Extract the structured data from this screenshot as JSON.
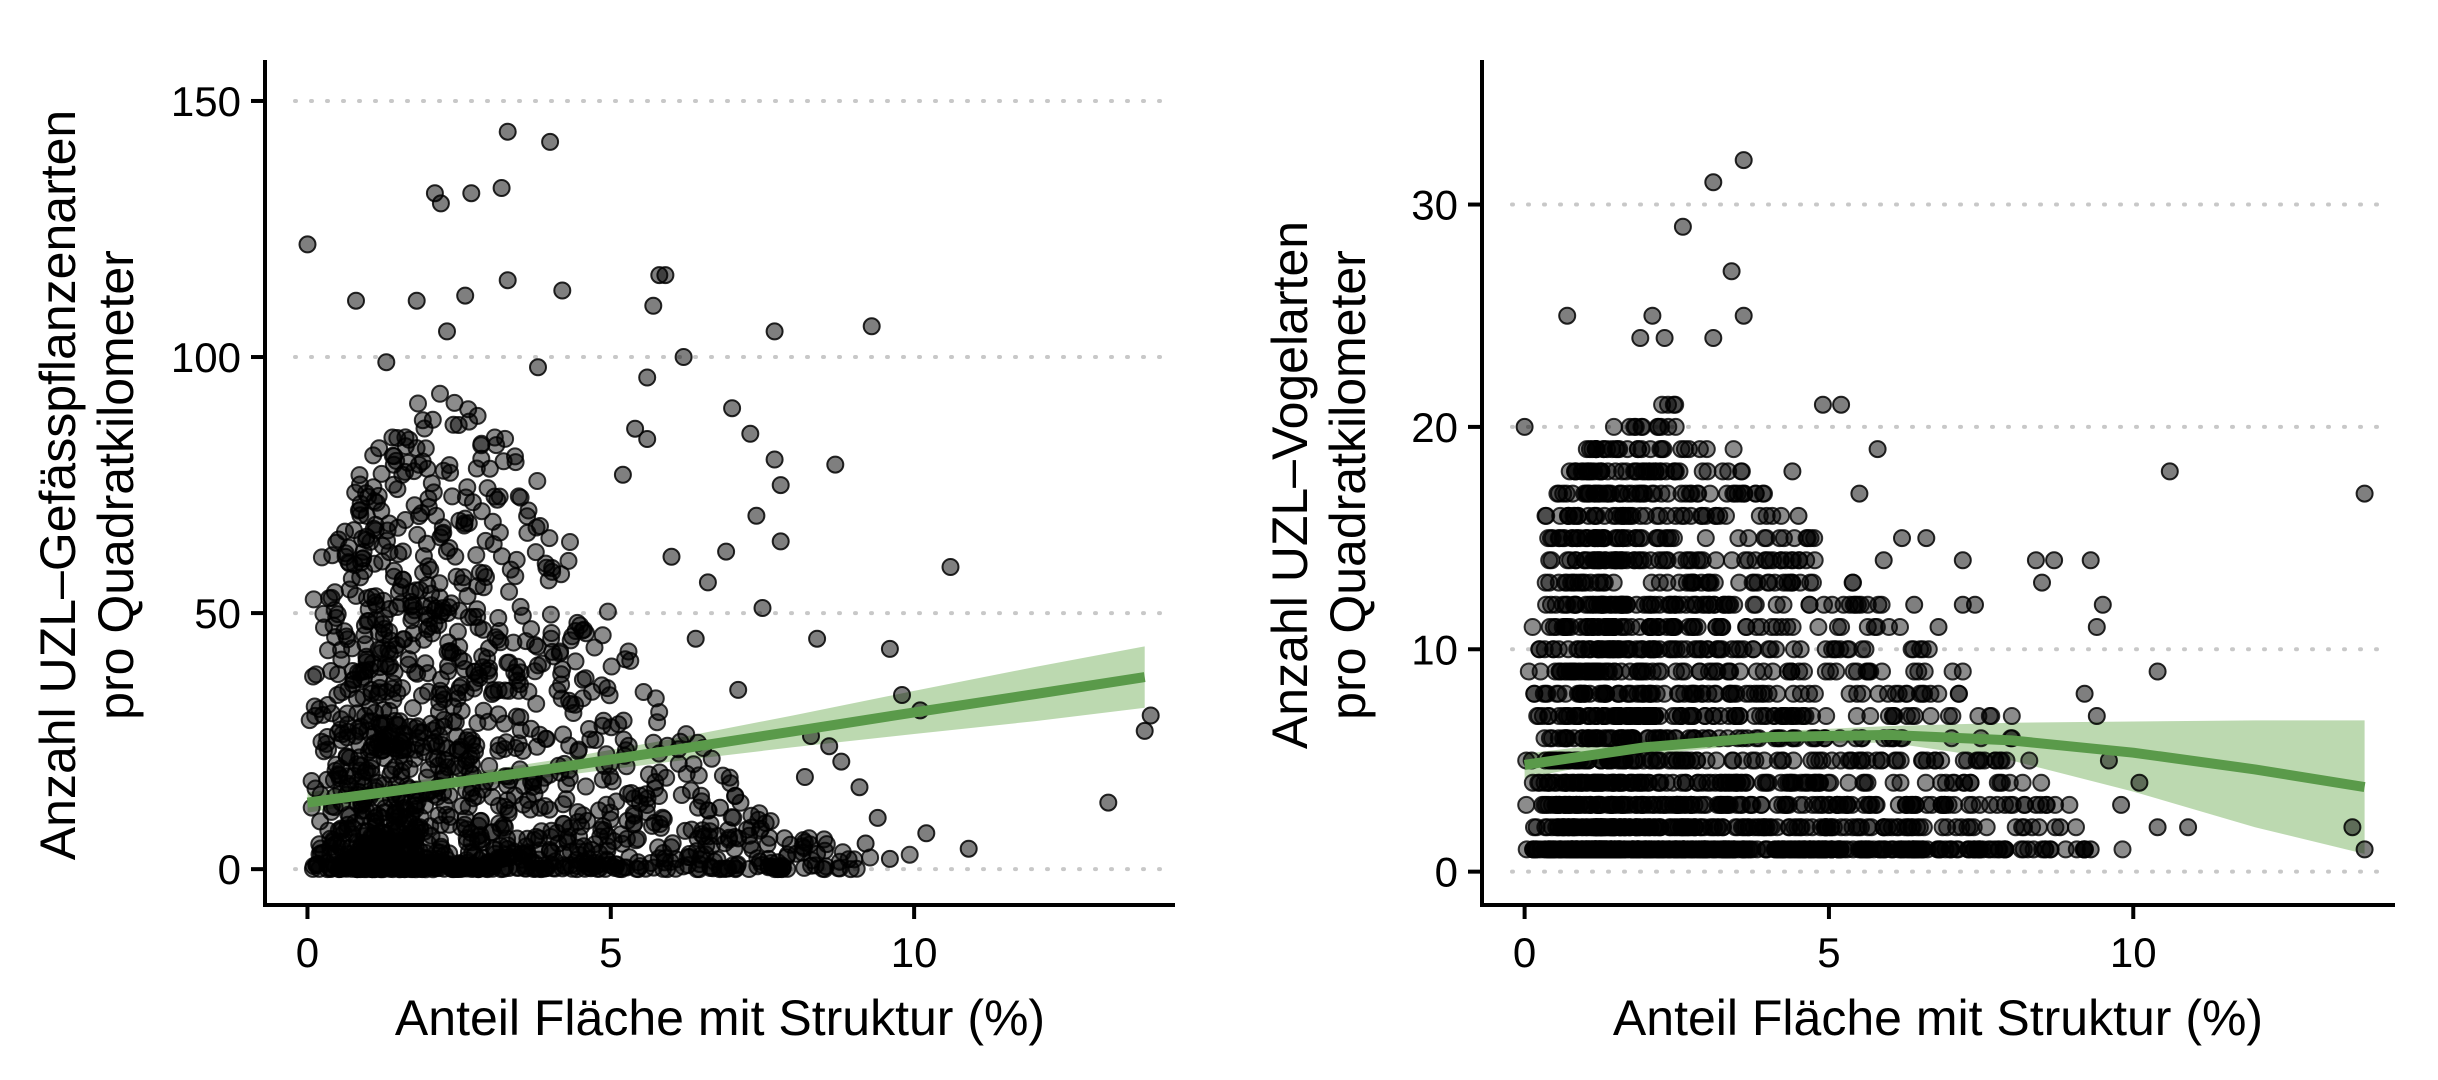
{
  "chart_data": [
    {
      "type": "scatter",
      "xlabel": "Anteil Fläche mit Struktur (%)",
      "ylabel_lines": [
        "Anzahl UZL–Gefässpflanzenarten",
        "pro Quadratkilometer"
      ],
      "xlim": [
        -0.7,
        14.3
      ],
      "ylim": [
        -7,
        158
      ],
      "xticks": [
        0,
        5,
        10
      ],
      "yticks": [
        0,
        50,
        100,
        150
      ],
      "grid": "horizontal dotted",
      "colors": {
        "points": "#000000",
        "trend": "#5a9a4a",
        "band": "#a6cc96",
        "grid": "#c8c8c8"
      },
      "highlight_points": [
        [
          0,
          122
        ],
        [
          3.3,
          144
        ],
        [
          4,
          142
        ],
        [
          2.1,
          132
        ],
        [
          2.7,
          132
        ],
        [
          3.2,
          133
        ],
        [
          2.2,
          130
        ],
        [
          1.8,
          111
        ],
        [
          2.6,
          112
        ],
        [
          3.3,
          115
        ],
        [
          4.2,
          113
        ],
        [
          0.8,
          111
        ],
        [
          5.8,
          116
        ],
        [
          5.9,
          116
        ],
        [
          5.7,
          110
        ],
        [
          7.7,
          105
        ],
        [
          9.3,
          106
        ],
        [
          2.3,
          105
        ],
        [
          6.2,
          100
        ],
        [
          5.6,
          96
        ],
        [
          1.3,
          99
        ],
        [
          3.8,
          98
        ],
        [
          7,
          90
        ],
        [
          7.3,
          85
        ],
        [
          5.4,
          86
        ],
        [
          5.6,
          84
        ],
        [
          7.7,
          80
        ],
        [
          8.7,
          79
        ],
        [
          7.8,
          75
        ],
        [
          5.2,
          77
        ],
        [
          6.9,
          62
        ],
        [
          7.8,
          64
        ],
        [
          10.6,
          59
        ],
        [
          7.4,
          69
        ],
        [
          6.6,
          56
        ],
        [
          6,
          61
        ],
        [
          9.6,
          43
        ],
        [
          8.4,
          45
        ],
        [
          6.4,
          45
        ],
        [
          7.5,
          51
        ],
        [
          7.1,
          35
        ],
        [
          9.8,
          34
        ],
        [
          10.1,
          31
        ],
        [
          8.3,
          26
        ],
        [
          8.6,
          24
        ],
        [
          9.1,
          16
        ],
        [
          9.4,
          10
        ],
        [
          10.2,
          7
        ],
        [
          10.9,
          4
        ],
        [
          13.2,
          13
        ],
        [
          13.8,
          27
        ],
        [
          13.9,
          30
        ],
        [
          9.2,
          5
        ],
        [
          9.6,
          2
        ],
        [
          8.4,
          3
        ],
        [
          8.2,
          18
        ],
        [
          8.8,
          21
        ],
        [
          7.6,
          2
        ],
        [
          7.1,
          6
        ],
        [
          6.8,
          12
        ]
      ],
      "cloud_profile": [
        [
          0,
          55
        ],
        [
          0.5,
          70
        ],
        [
          1,
          80
        ],
        [
          1.5,
          88
        ],
        [
          2,
          95
        ],
        [
          2.5,
          92
        ],
        [
          3,
          88
        ],
        [
          3.5,
          82
        ],
        [
          4,
          72
        ],
        [
          4.5,
          60
        ],
        [
          5,
          50
        ],
        [
          5.5,
          38
        ],
        [
          6,
          30
        ],
        [
          6.5,
          24
        ],
        [
          7,
          18
        ],
        [
          7.5,
          12
        ],
        [
          8,
          9
        ],
        [
          8.5,
          6
        ],
        [
          9,
          4
        ],
        [
          10,
          3
        ],
        [
          11,
          2
        ],
        [
          12,
          1
        ],
        [
          14,
          1
        ]
      ],
      "cloud_point_count": 1450,
      "trend_line": {
        "x": [
          0,
          2,
          4,
          6,
          8,
          10,
          12,
          13.8
        ],
        "y": [
          13,
          16.2,
          19.6,
          23.2,
          26.9,
          30.6,
          34.2,
          37.5
        ],
        "lower": [
          11,
          14.8,
          18,
          21,
          23.8,
          26.4,
          28.9,
          31.5
        ],
        "upper": [
          15,
          17.6,
          21.2,
          25.4,
          30,
          34.8,
          39.5,
          43.5
        ]
      }
    },
    {
      "type": "scatter",
      "xlabel": "Anteil Fläche mit Struktur (%)",
      "ylabel_lines": [
        "Anzahl UZL–Vogelarten",
        "pro Quadratkilometer"
      ],
      "xlim": [
        -0.7,
        14.3
      ],
      "ylim": [
        -1.5,
        36.5
      ],
      "xticks": [
        0,
        5,
        10
      ],
      "yticks": [
        0,
        10,
        20,
        30
      ],
      "grid": "horizontal dotted",
      "colors": {
        "points": "#000000",
        "trend": "#5a9a4a",
        "band": "#a6cc96",
        "grid": "#c8c8c8"
      },
      "highlight_points": [
        [
          3.6,
          32
        ],
        [
          3.1,
          31
        ],
        [
          2.6,
          29
        ],
        [
          3.4,
          27
        ],
        [
          0.7,
          25
        ],
        [
          2.1,
          25
        ],
        [
          3.6,
          25
        ],
        [
          4.9,
          21
        ],
        [
          5.2,
          21
        ],
        [
          0,
          20
        ],
        [
          5.5,
          17
        ],
        [
          5.8,
          19
        ],
        [
          6.2,
          15
        ],
        [
          6.6,
          15
        ],
        [
          7.2,
          14
        ],
        [
          8.4,
          14
        ],
        [
          8.7,
          14
        ],
        [
          8.5,
          13
        ],
        [
          9.3,
          14
        ],
        [
          10.6,
          18
        ],
        [
          13.8,
          17
        ],
        [
          9.5,
          12
        ],
        [
          7.4,
          12
        ],
        [
          9.4,
          11
        ],
        [
          9.2,
          8
        ],
        [
          9.4,
          7
        ],
        [
          10.4,
          9
        ],
        [
          9.6,
          5
        ],
        [
          9.8,
          3
        ],
        [
          10.1,
          4
        ],
        [
          10.4,
          2
        ],
        [
          10.9,
          2
        ],
        [
          13.6,
          2
        ],
        [
          13.8,
          1
        ],
        [
          9.2,
          1
        ],
        [
          9.3,
          1
        ],
        [
          8.8,
          2
        ],
        [
          8.2,
          1
        ],
        [
          8.4,
          3
        ],
        [
          7.9,
          1
        ],
        [
          7.2,
          12
        ],
        [
          6.8,
          11
        ],
        [
          6.4,
          12
        ],
        [
          5.9,
          14
        ],
        [
          4.5,
          16
        ],
        [
          4.4,
          18
        ],
        [
          1.9,
          24
        ],
        [
          2.3,
          24
        ],
        [
          3.1,
          24
        ]
      ],
      "cloud_profile": [
        [
          0,
          14
        ],
        [
          0.5,
          17
        ],
        [
          1,
          19
        ],
        [
          1.5,
          20
        ],
        [
          2,
          21
        ],
        [
          2.5,
          21
        ],
        [
          3,
          20
        ],
        [
          3.5,
          19
        ],
        [
          4,
          17
        ],
        [
          4.5,
          16
        ],
        [
          5,
          14
        ],
        [
          5.5,
          13
        ],
        [
          6,
          12
        ],
        [
          6.5,
          11
        ],
        [
          7,
          9
        ],
        [
          7.5,
          8
        ],
        [
          8,
          7
        ],
        [
          8.5,
          5
        ],
        [
          9,
          3
        ],
        [
          9.5,
          2
        ],
        [
          10,
          2
        ]
      ],
      "cloud_point_count": 2000,
      "trend_line": {
        "x": [
          0,
          2,
          4,
          6,
          8,
          10,
          12,
          13.8
        ],
        "y": [
          4.8,
          5.6,
          6.05,
          6.15,
          5.9,
          5.35,
          4.6,
          3.8
        ],
        "lower": [
          4.2,
          5.25,
          5.8,
          5.8,
          5.0,
          3.6,
          2.0,
          0.8
        ],
        "upper": [
          5.3,
          5.95,
          6.3,
          6.55,
          6.7,
          6.75,
          6.8,
          6.8
        ]
      }
    }
  ]
}
